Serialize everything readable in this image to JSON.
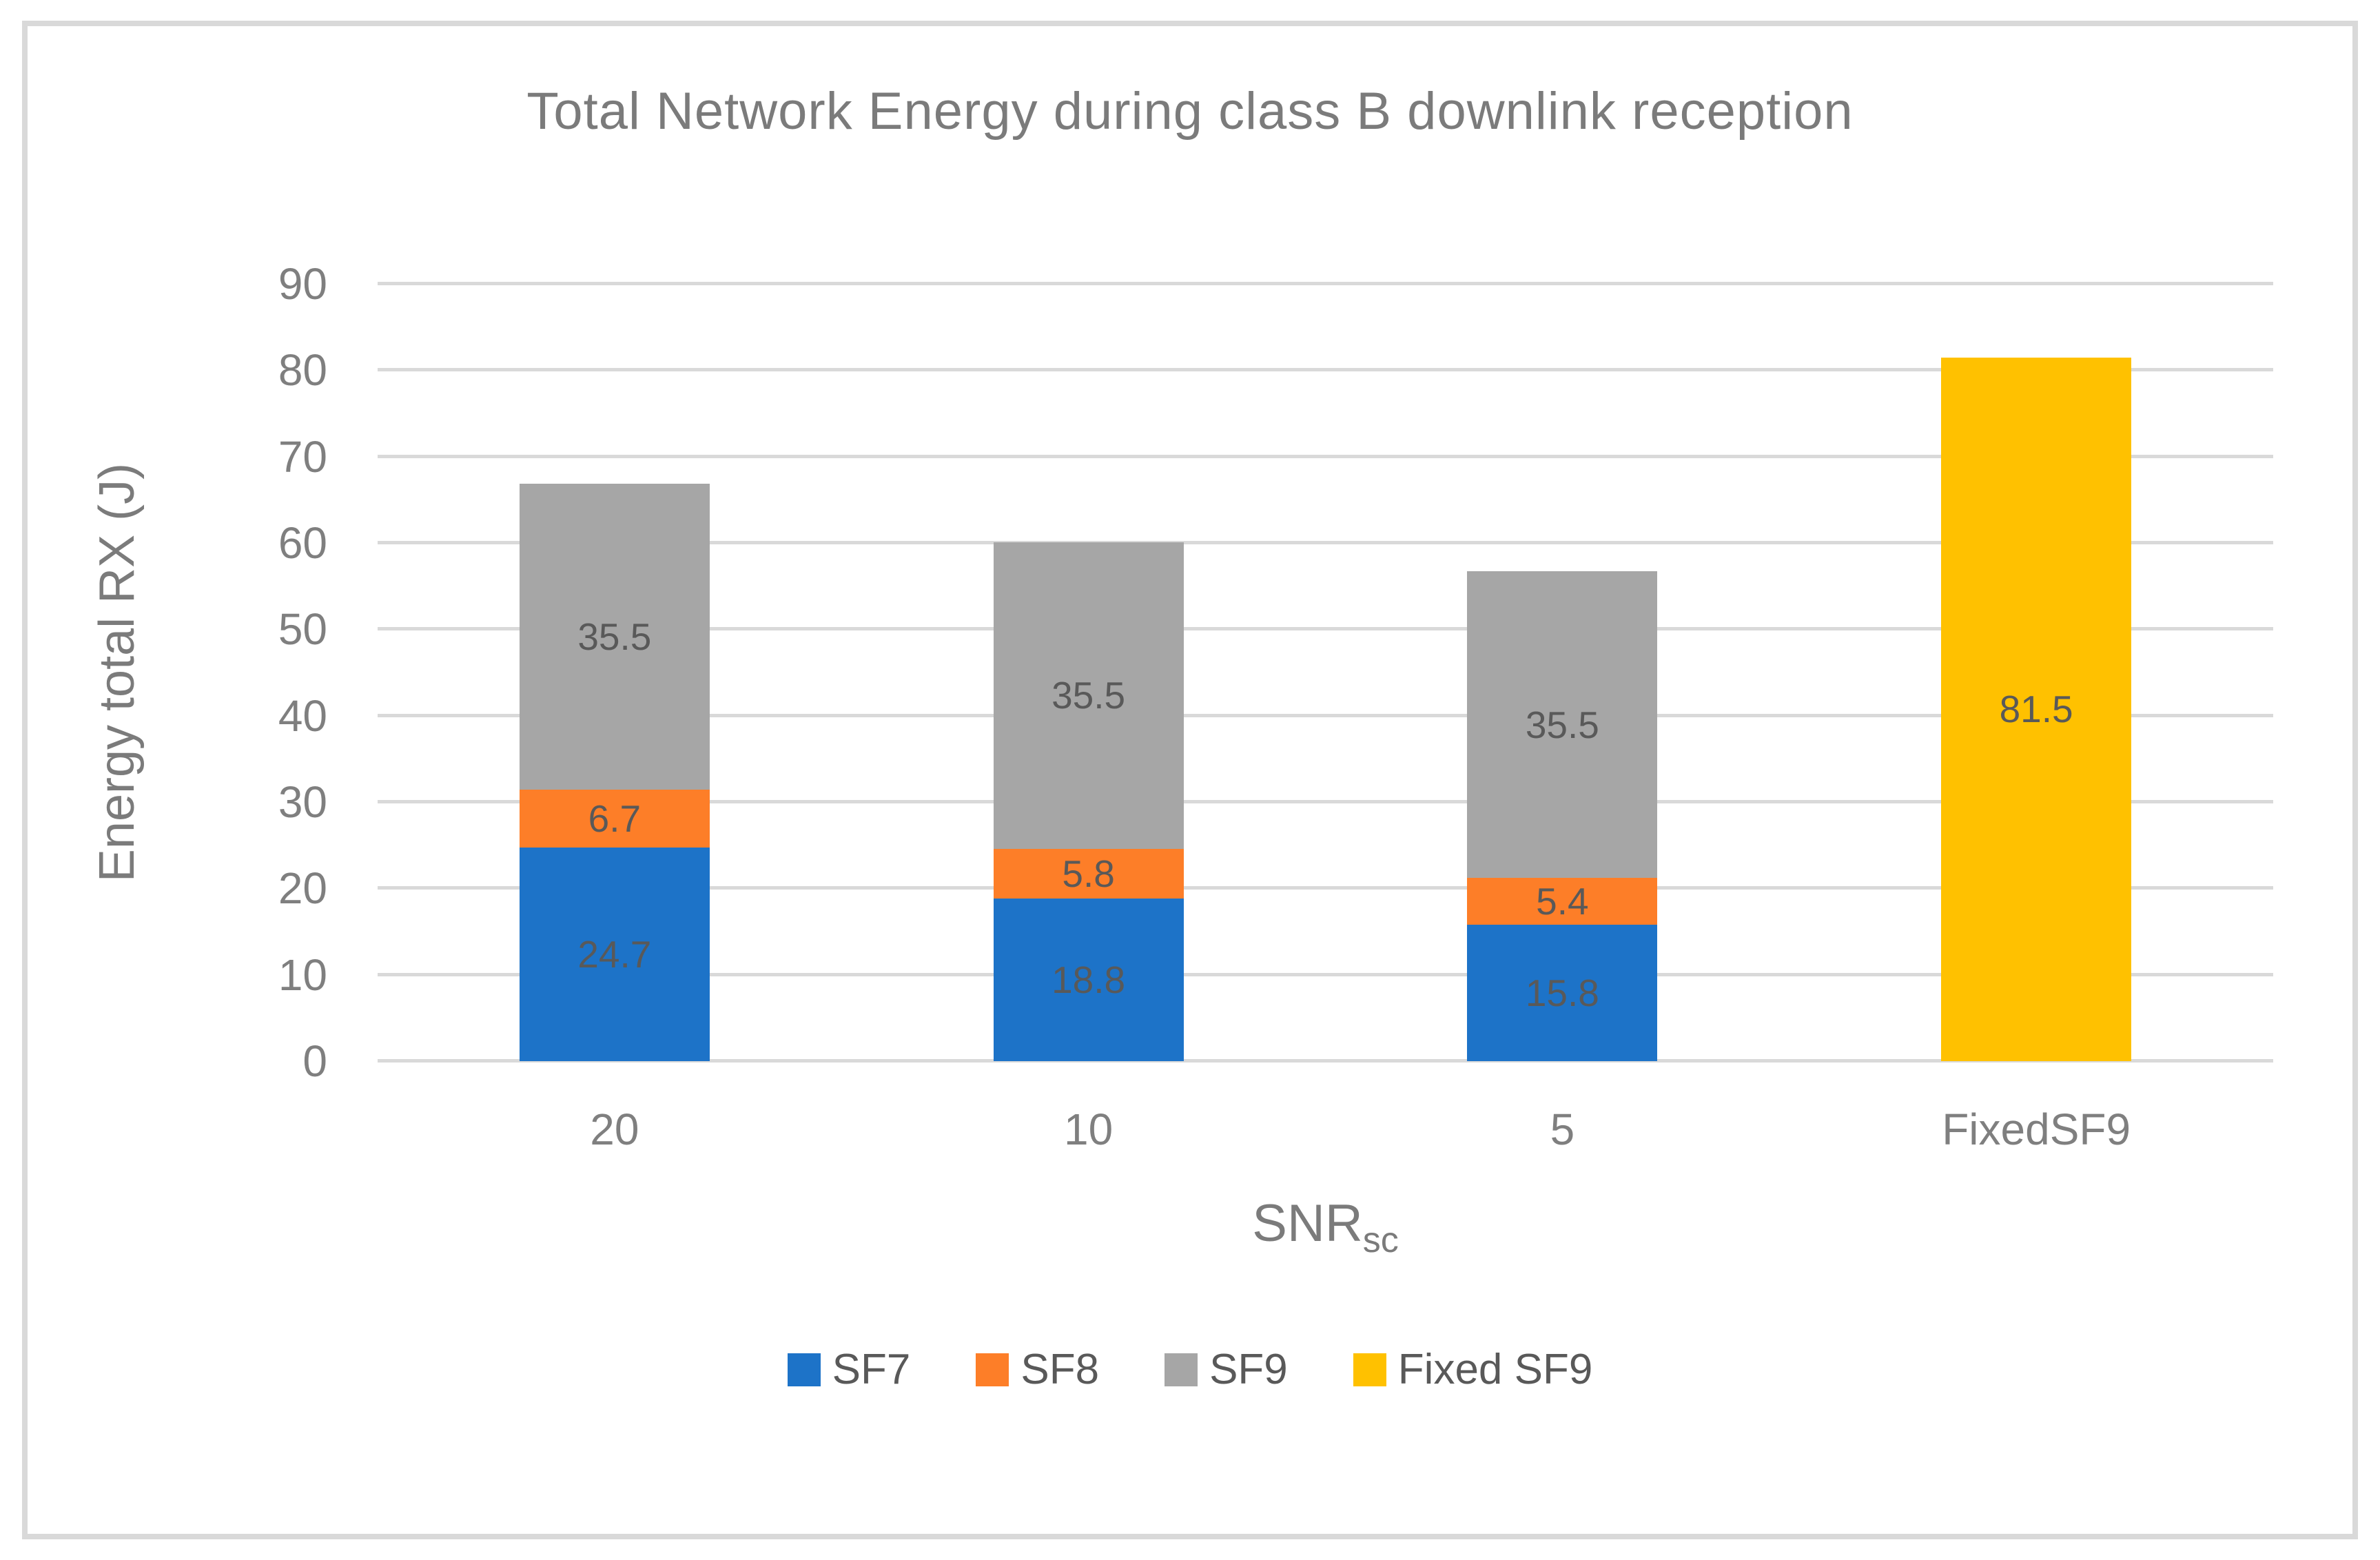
{
  "chart_data": {
    "type": "bar",
    "subtype": "stacked",
    "title": "Total Network Energy during class B downlink reception",
    "xlabel": "SNR",
    "xlabel_subscript": "sc",
    "ylabel": "Energy total RX (J)",
    "ylim": [
      0,
      90
    ],
    "ytick_step": 10,
    "grid": "horizontal-on",
    "legend_position": "bottom",
    "categories": [
      "20",
      "10",
      "5",
      "FixedSF9"
    ],
    "series": [
      {
        "name": "SF7",
        "color": "#1D73C8",
        "values": [
          24.7,
          18.8,
          15.8,
          null
        ]
      },
      {
        "name": "SF8",
        "color": "#FD7E28",
        "values": [
          6.7,
          5.8,
          5.4,
          null
        ]
      },
      {
        "name": "SF9",
        "color": "#A6A6A6",
        "values": [
          35.5,
          35.5,
          35.5,
          null
        ]
      },
      {
        "name": "Fixed SF9",
        "color": "#FFC100",
        "values": [
          null,
          null,
          null,
          81.5
        ]
      }
    ],
    "bar_totals": [
      66.9,
      60.1,
      56.7,
      81.5
    ]
  },
  "palette": {
    "gridline": "#D9D9D9",
    "frame_border": "#D9D9D9",
    "title_text": "#7B7B7B",
    "tick_text": "#7F7F7F",
    "data_label_text": "#595959",
    "legend_text": "#595959",
    "background": "#FFFFFF"
  }
}
